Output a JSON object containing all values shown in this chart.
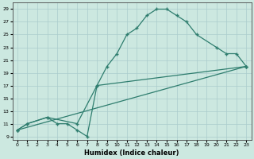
{
  "xlabel": "Humidex (Indice chaleur)",
  "background_color": "#cce8e0",
  "grid_color": "#aacccc",
  "line_color": "#2e7d6e",
  "xlim": [
    -0.5,
    23.5
  ],
  "ylim": [
    8.5,
    30
  ],
  "xticks": [
    0,
    1,
    2,
    3,
    4,
    5,
    6,
    7,
    8,
    9,
    10,
    11,
    12,
    13,
    14,
    15,
    16,
    17,
    18,
    19,
    20,
    21,
    22,
    23
  ],
  "yticks": [
    9,
    11,
    13,
    15,
    17,
    19,
    21,
    23,
    25,
    27,
    29
  ],
  "series": [
    {
      "x": [
        0,
        1,
        3,
        6,
        8,
        9,
        10,
        11,
        12,
        13,
        14,
        15,
        16,
        17,
        18,
        20,
        21,
        22,
        23
      ],
      "y": [
        10,
        11,
        12,
        11,
        17,
        20,
        22,
        25,
        26,
        28,
        29,
        29,
        28,
        27,
        25,
        23,
        22,
        22,
        20
      ]
    },
    {
      "x": [
        0,
        23
      ],
      "y": [
        10,
        20
      ]
    },
    {
      "x": [
        0,
        1,
        3,
        4,
        5,
        6,
        7,
        8,
        23
      ],
      "y": [
        10,
        11,
        12,
        11,
        11,
        10,
        9,
        17,
        20
      ]
    }
  ]
}
